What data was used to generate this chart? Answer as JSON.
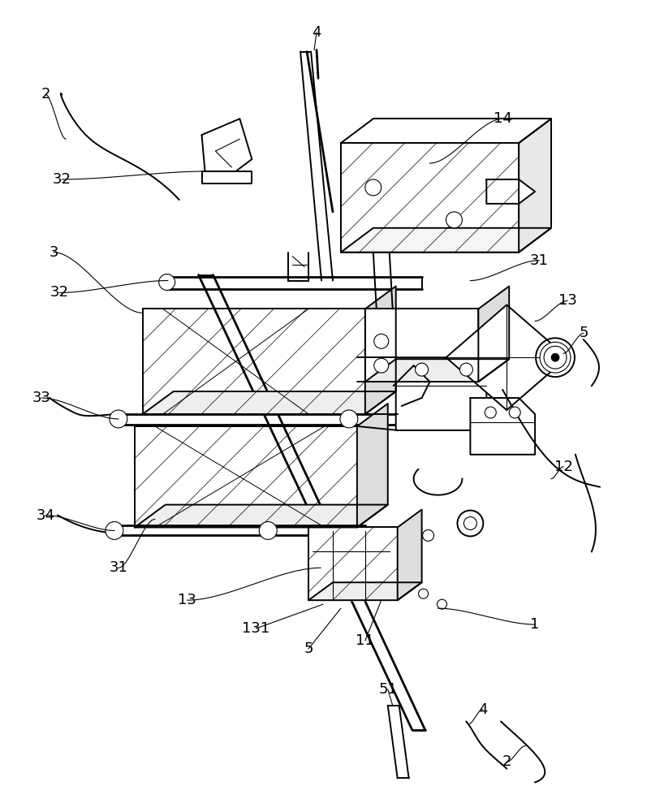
{
  "bg_color": "#ffffff",
  "line_color": "#000000",
  "lw": 1.4,
  "lw_thin": 0.8,
  "lw_thick": 2.0,
  "fig_width": 8.03,
  "fig_height": 10.0
}
